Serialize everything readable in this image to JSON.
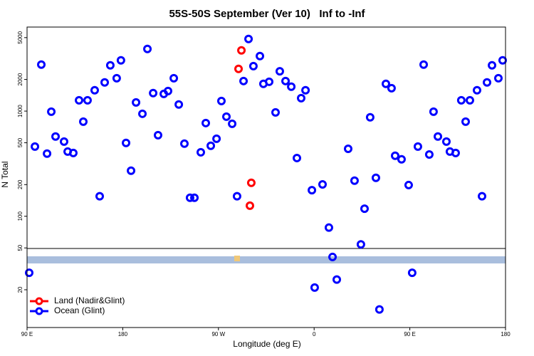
{
  "chart_data": {
    "type": "scatter",
    "title": "55S-50S September (Ver 10)   Inf to -Inf",
    "x_label": "Longitude (deg E)",
    "y_label": "N Total",
    "xlim": [
      90,
      540
    ],
    "xticks": [
      {
        "value": 90,
        "label": "90 E"
      },
      180,
      {
        "value": 270,
        "label": "90 W"
      },
      {
        "value": 360,
        "label": "0"
      },
      {
        "value": 450,
        "label": "90 E"
      },
      {
        "value": 540,
        "label": "180"
      }
    ],
    "ylim": [
      8.75,
      6300
    ],
    "yticks": [
      20,
      50,
      100,
      200,
      500,
      1000,
      2000,
      5000
    ],
    "log_y": true,
    "legend_position": "bottom-left",
    "series": [
      {
        "name": "Land (Nadir&Glint)",
        "color": "#ff0000",
        "x": [
          291.6,
          288.9,
          300.9,
          299.6
        ],
        "values": [
          3780,
          2520,
          208,
          126
        ]
      },
      {
        "name": "Ocean (Glint)",
        "color": "#0000ff",
        "x": [
          92.0,
          360.5,
          97.4,
          103.4,
          108.8,
          112.8,
          116.8,
          124.8,
          128.2,
          133.5,
          138.9,
          142.9,
          146.9,
          153.6,
          158.3,
          163.0,
          168.3,
          174.3,
          178.3,
          183.1,
          187.8,
          192.5,
          198.5,
          203.2,
          208.6,
          213.2,
          218.6,
          222.6,
          228.0,
          232.7,
          238.0,
          243.3,
          247.4,
          253.4,
          258.1,
          262.8,
          268.2,
          272.8,
          277.5,
          282.9,
          287.5,
          293.6,
          298.3,
          302.9,
          309.0,
          312.3,
          317.7,
          323.7,
          327.7,
          333.1,
          338.5,
          343.8,
          347.8,
          351.9,
          357.9,
          367.9,
          373.9,
          377.3,
          381.3,
          392.0,
          398.0,
          404.0,
          407.4,
          412.7,
          418.1,
          421.4,
          427.5,
          432.8,
          436.2,
          442.2,
          448.9,
          452.2,
          457.6,
          463.0,
          468.3,
          472.3,
          476.4,
          484.4,
          487.7,
          493.1,
          498.4,
          502.5,
          506.5,
          513.2,
          517.9,
          522.6,
          527.3,
          533.3,
          537.3
        ],
        "values": [
          29,
          21,
          460,
          2770,
          394,
          988,
          573,
          513,
          412,
          400,
          1268,
          794,
          1268,
          1578,
          155,
          1875,
          2723,
          2056,
          3040,
          498,
          271,
          1210,
          943,
          3900,
          1483,
          590,
          1459,
          1553,
          2056,
          1156,
          490,
          150,
          150,
          406,
          770,
          468,
          546,
          1248,
          885,
          758,
          155,
          1932,
          4850,
          2680,
          3335,
          1817,
          1902,
          972,
          2390,
          1932,
          1707,
          358,
          1328,
          1578,
          177,
          201,
          78,
          41,
          25,
          438,
          218,
          54,
          118,
          873,
          232,
          13,
          1817,
          1652,
          376,
          348,
          198,
          29,
          460,
          2770,
          387,
          988,
          573,
          513,
          412,
          400,
          1268,
          794,
          1268,
          1578,
          155,
          1875,
          2723,
          2056,
          3040
        ]
      }
    ]
  }
}
